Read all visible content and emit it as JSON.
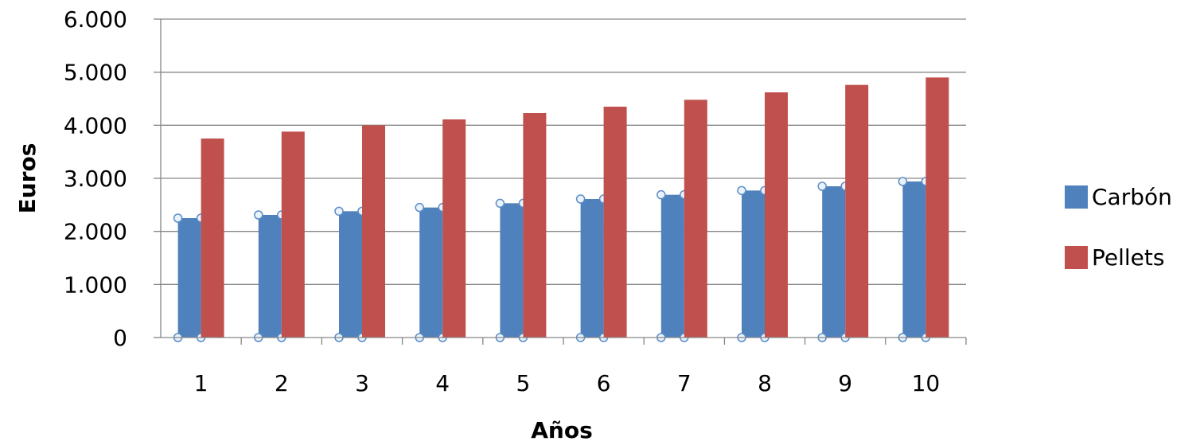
{
  "chart_data": {
    "type": "bar",
    "xlabel": "Años",
    "ylabel": "Euros",
    "categories": [
      "1",
      "2",
      "3",
      "4",
      "5",
      "6",
      "7",
      "8",
      "9",
      "10"
    ],
    "yticks": [
      "0",
      "1.000",
      "2.000",
      "3.000",
      "4.000",
      "5.000",
      "6.000"
    ],
    "ylim": [
      0,
      6000
    ],
    "grid": true,
    "legend_position": "right",
    "series": [
      {
        "name": "Carbón",
        "color": "#4F81BD",
        "values": [
          2250,
          2310,
          2380,
          2450,
          2530,
          2610,
          2690,
          2770,
          2850,
          2940
        ]
      },
      {
        "name": "Pellets",
        "color": "#C0504D",
        "values": [
          3750,
          3880,
          4000,
          4110,
          4230,
          4350,
          4480,
          4620,
          4760,
          4900
        ]
      }
    ]
  }
}
